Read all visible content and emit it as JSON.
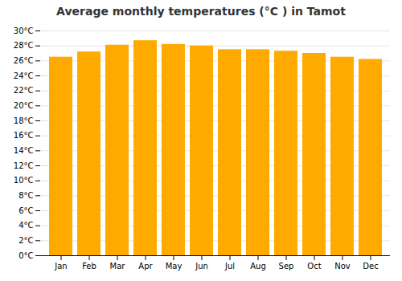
{
  "chart_data": {
    "type": "bar",
    "title": "Average monthly temperatures (°C ) in Tamot",
    "categories": [
      "Jan",
      "Feb",
      "Mar",
      "Apr",
      "May",
      "Jun",
      "Jul",
      "Aug",
      "Sep",
      "Oct",
      "Nov",
      "Dec"
    ],
    "values": [
      26.5,
      27.2,
      28.1,
      28.7,
      28.2,
      28.0,
      27.5,
      27.5,
      27.3,
      27.0,
      26.5,
      26.2
    ],
    "color": "#FFAA00",
    "ylim": [
      0,
      30
    ],
    "yticks": [
      {
        "value": 0,
        "label": "0°C"
      },
      {
        "value": 2,
        "label": "2°C"
      },
      {
        "value": 4,
        "label": "4°C"
      },
      {
        "value": 6,
        "label": "6°C"
      },
      {
        "value": 8,
        "label": "8°C"
      },
      {
        "value": 10,
        "label": "10°C"
      },
      {
        "value": 12,
        "label": "12°C"
      },
      {
        "value": 14,
        "label": "14°C"
      },
      {
        "value": 16,
        "label": "16°C"
      },
      {
        "value": 18,
        "label": "18°C"
      },
      {
        "value": 20,
        "label": "20°C"
      },
      {
        "value": 22,
        "label": "22°C"
      },
      {
        "value": 24,
        "label": "24°C"
      },
      {
        "value": 26,
        "label": "26°C"
      },
      {
        "value": 28,
        "label": "28°C"
      },
      {
        "value": 30,
        "label": "30°C"
      }
    ],
    "grid": true
  }
}
